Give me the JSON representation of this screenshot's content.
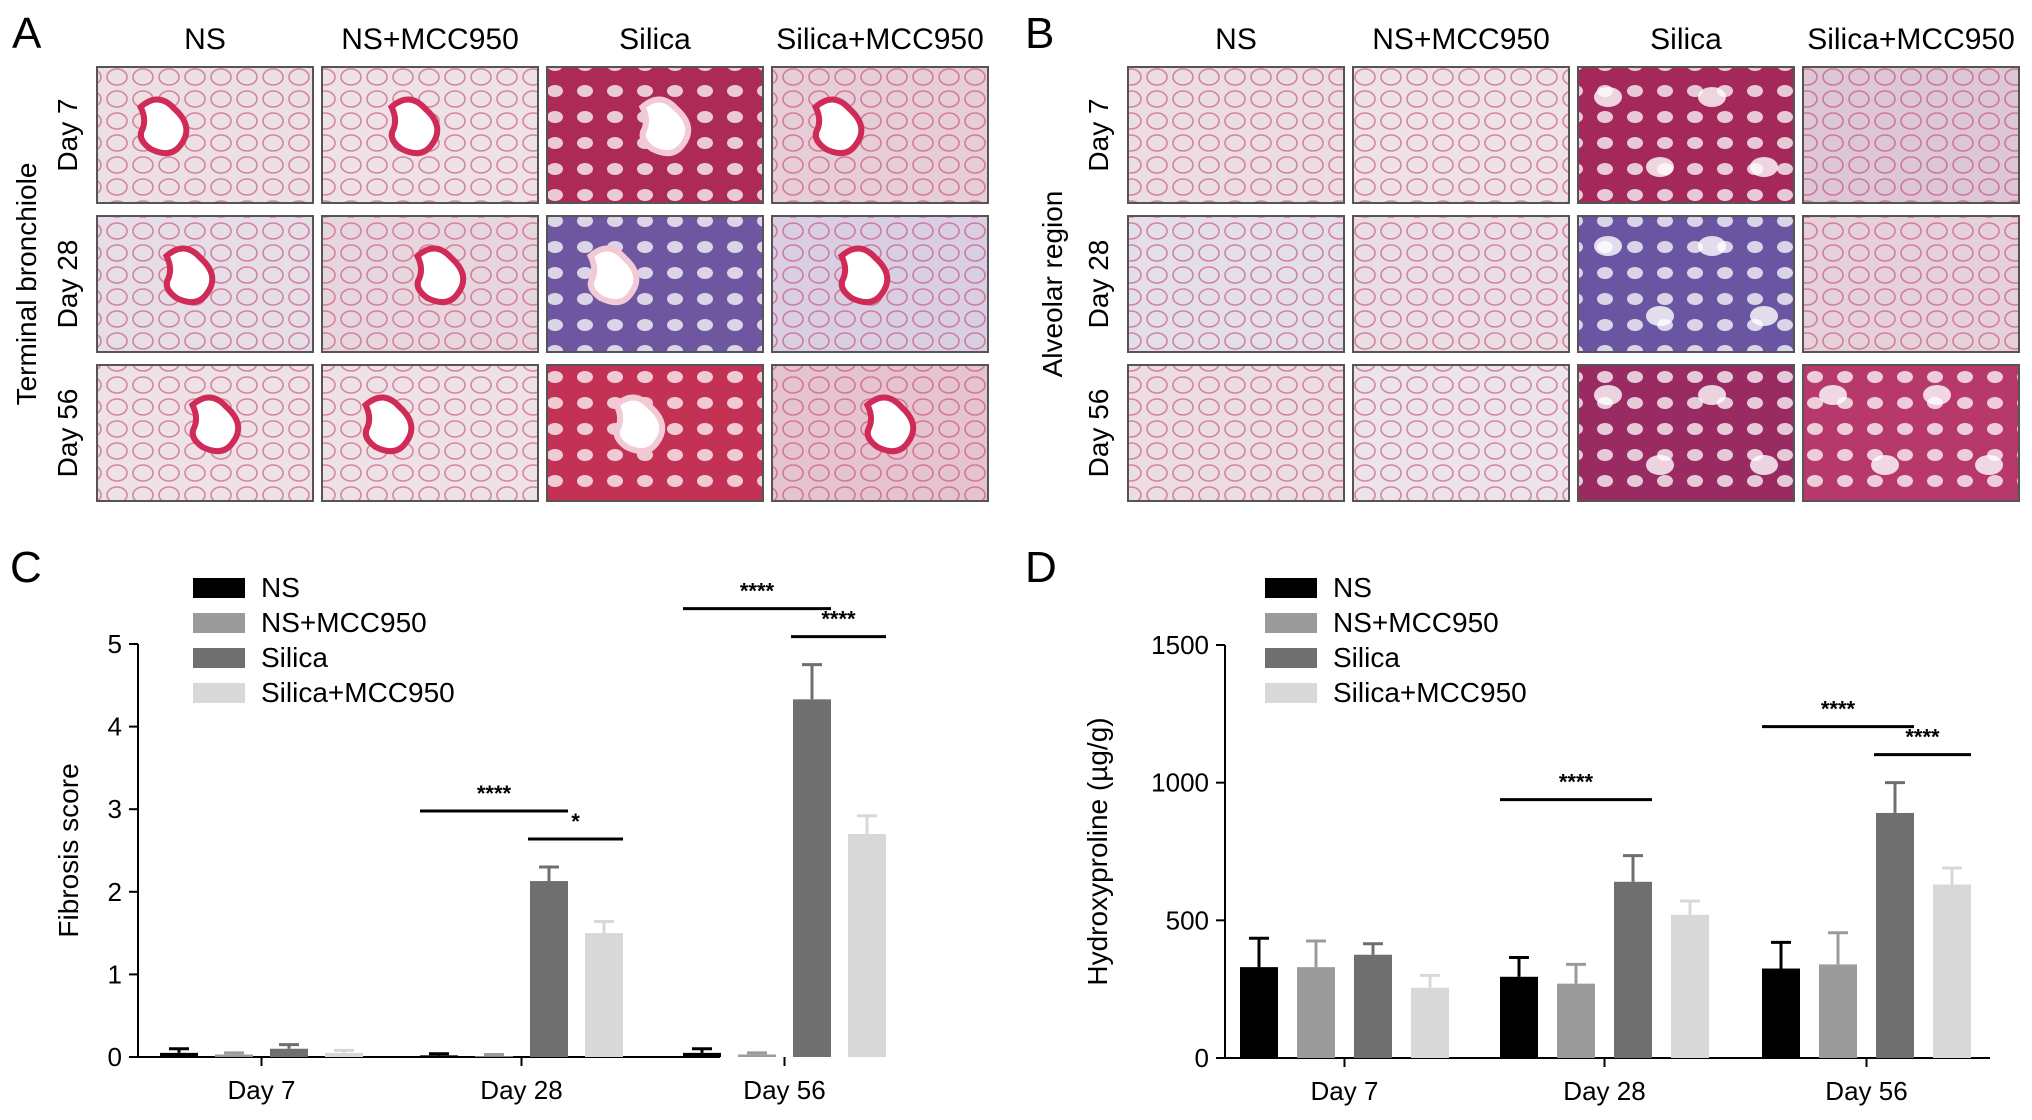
{
  "micrographs": [
    {
      "letter": "A",
      "side_label": "Terminal bronchiole",
      "columns": [
        "NS",
        "NS+MCC950",
        "Silica",
        "Silica+MCC950"
      ],
      "rows": [
        "Day 7",
        "Day 28",
        "Day 56"
      ],
      "variant": "bronchiole",
      "tints": [
        [
          "#ece0e4",
          "#eee2e6",
          "#ad2a57",
          "#e6cdd6"
        ],
        [
          "#e6dde6",
          "#e8d6de",
          "#6e57a0",
          "#dacfe2"
        ],
        [
          "#eee2e6",
          "#efe2e6",
          "#c33155",
          "#e6c4cf"
        ]
      ]
    },
    {
      "letter": "B",
      "side_label": "Alveolar region",
      "columns": [
        "NS",
        "NS+MCC950",
        "Silica",
        "Silica+MCC950"
      ],
      "rows": [
        "Day 7",
        "Day 28",
        "Day 56"
      ],
      "variant": "alveolar",
      "tints": [
        [
          "#ecdde3",
          "#eee2e6",
          "#a5285a",
          "#ddc6d6"
        ],
        [
          "#e4deea",
          "#eadde4",
          "#6a55a2",
          "#e6d0da"
        ],
        [
          "#ecdde3",
          "#ece4ea",
          "#992a62",
          "#b7386a"
        ]
      ]
    }
  ],
  "chart_data": [
    {
      "letter": "C",
      "type": "bar",
      "categories": [
        "Day 7",
        "Day 28",
        "Day 56"
      ],
      "series": [
        {
          "name": "NS",
          "values": [
            0.05,
            0.02,
            0.05
          ],
          "errors": [
            0.05,
            0.02,
            0.05
          ]
        },
        {
          "name": "NS+MCC950",
          "values": [
            0.03,
            0.01,
            0.03
          ],
          "errors": [
            0.02,
            0.02,
            0.02
          ]
        },
        {
          "name": "Silica",
          "values": [
            0.1,
            2.13,
            4.33
          ],
          "errors": [
            0.05,
            0.17,
            0.42
          ]
        },
        {
          "name": "Silica+MCC950",
          "values": [
            0.05,
            1.5,
            2.7
          ],
          "errors": [
            0.03,
            0.14,
            0.22
          ]
        }
      ],
      "ylabel": "Fibrosis score",
      "ylim": [
        0,
        5
      ],
      "yticks": [
        "0",
        "1",
        "2",
        "3",
        "4",
        "5"
      ],
      "legend": "top-left",
      "significance": [
        {
          "category": "Day 28",
          "from": "NS",
          "to": "Silica",
          "label": "****"
        },
        {
          "category": "Day 28",
          "from": "Silica",
          "to": "Silica+MCC950",
          "label": "*"
        },
        {
          "category": "Day 56",
          "from": "NS",
          "to": "Silica",
          "label": "****"
        },
        {
          "category": "Day 56",
          "from": "Silica",
          "to": "Silica+MCC950",
          "label": "****"
        }
      ]
    },
    {
      "letter": "D",
      "type": "bar",
      "categories": [
        "Day 7",
        "Day 28",
        "Day 56"
      ],
      "series": [
        {
          "name": "NS",
          "values": [
            330,
            295,
            325
          ],
          "errors": [
            105,
            70,
            95
          ]
        },
        {
          "name": "NS+MCC950",
          "values": [
            330,
            270,
            340
          ],
          "errors": [
            95,
            70,
            115
          ]
        },
        {
          "name": "Silica",
          "values": [
            375,
            640,
            890
          ],
          "errors": [
            40,
            95,
            110
          ]
        },
        {
          "name": "Silica+MCC950",
          "values": [
            255,
            520,
            630
          ],
          "errors": [
            45,
            50,
            60
          ]
        }
      ],
      "ylabel": "Hydroxyproline (µg/g)",
      "ylim": [
        0,
        1500
      ],
      "yticks": [
        "0",
        "500",
        "1000",
        "1500"
      ],
      "legend": "top-left",
      "significance": [
        {
          "category": "Day 28",
          "from": "NS",
          "to": "Silica",
          "label": "****"
        },
        {
          "category": "Day 56",
          "from": "NS",
          "to": "Silica",
          "label": "****"
        },
        {
          "category": "Day 56",
          "from": "Silica",
          "to": "Silica+MCC950",
          "label": "****"
        }
      ]
    }
  ],
  "series_colors": [
    "#000000",
    "#9b9b9b",
    "#6f6f6f",
    "#d8d8d8"
  ]
}
